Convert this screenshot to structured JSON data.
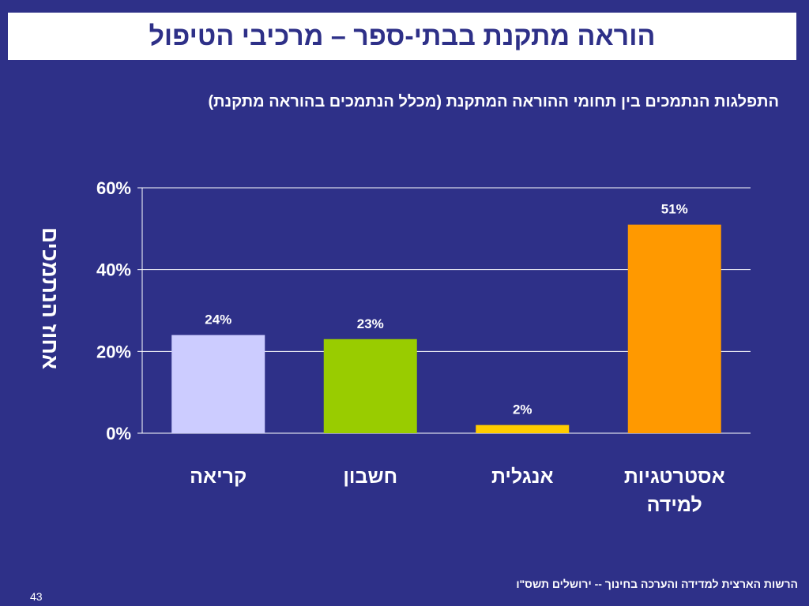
{
  "slide": {
    "title": "הוראה מתקנת בבתי-ספר – מרכיבי הטיפול",
    "footer": "הרשות הארצית למדידה והערכה בחינוך  -- ירושלים תשס\"ו",
    "page_number": "43"
  },
  "chart_data": {
    "type": "bar",
    "title": "התפלגות הנתמכים בין תחומי ההוראה המתקנת (מכלל הנתמכים בהוראה מתקנת)",
    "ylabel": "אחוז הנתמכים",
    "xlabel": "",
    "categories": [
      [
        "קריאה"
      ],
      [
        "חשבון"
      ],
      [
        "אנגלית"
      ],
      [
        "אסטרטגיות",
        "למידה"
      ]
    ],
    "values": [
      24,
      23,
      2,
      51
    ],
    "data_labels": [
      "24%",
      "23%",
      "2%",
      "51%"
    ],
    "colors": [
      "#ccccff",
      "#99cc00",
      "#ffcc00",
      "#ff9900"
    ],
    "ylim": [
      0,
      60
    ],
    "yticks": [
      0,
      20,
      40,
      60
    ],
    "ytick_labels": [
      "0%",
      "20%",
      "40%",
      "60%"
    ],
    "grid": true,
    "legend": false
  }
}
